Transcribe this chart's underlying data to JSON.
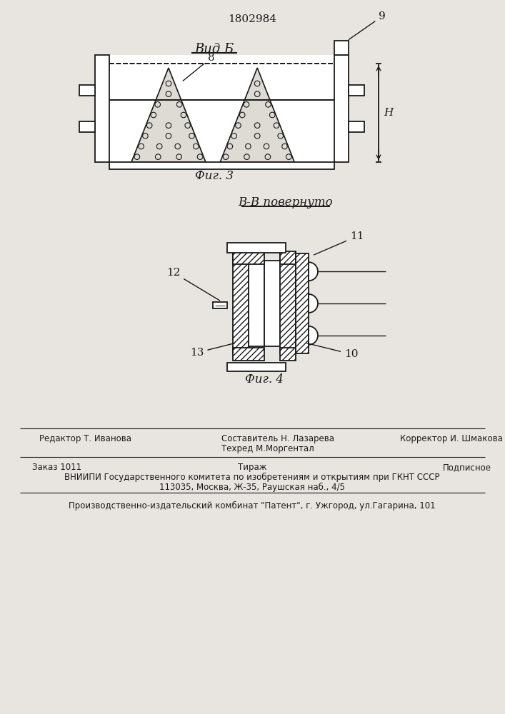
{
  "patent_number": "1802984",
  "fig3_label": "Фиг. 3",
  "fig4_label": "Фиг. 4",
  "vid_b_label": "Вид Б",
  "bb_label": "В-В повернуто",
  "label_8": "8",
  "label_9": "9",
  "label_10": "10",
  "label_11": "11",
  "label_12": "12",
  "label_13": "13",
  "label_H": "Н",
  "editor_line": "Редактор Т. Иванова",
  "composer_line1": "Составитель Н. Лазарева",
  "composer_line2": "Техред М.Моргентал",
  "corrector_line": "Корректор И. Шмакова",
  "order_line": "Заказ 1011",
  "tirazh_line": "Тираж",
  "podpisnoe_line": "Подписное",
  "vniiipi_line": "ВНИИПИ Государственного комитета по изобретениям и открытиям при ГКНТ СССР",
  "address_line": "113035, Москва, Ж-35, Раушская наб., 4/5",
  "production_line": "Производственно-издательский комбинат \"Патент\", г. Ужгород, ул.Гагарина, 101",
  "bg_color": "#e8e5e0",
  "line_color": "#1a1a1a"
}
